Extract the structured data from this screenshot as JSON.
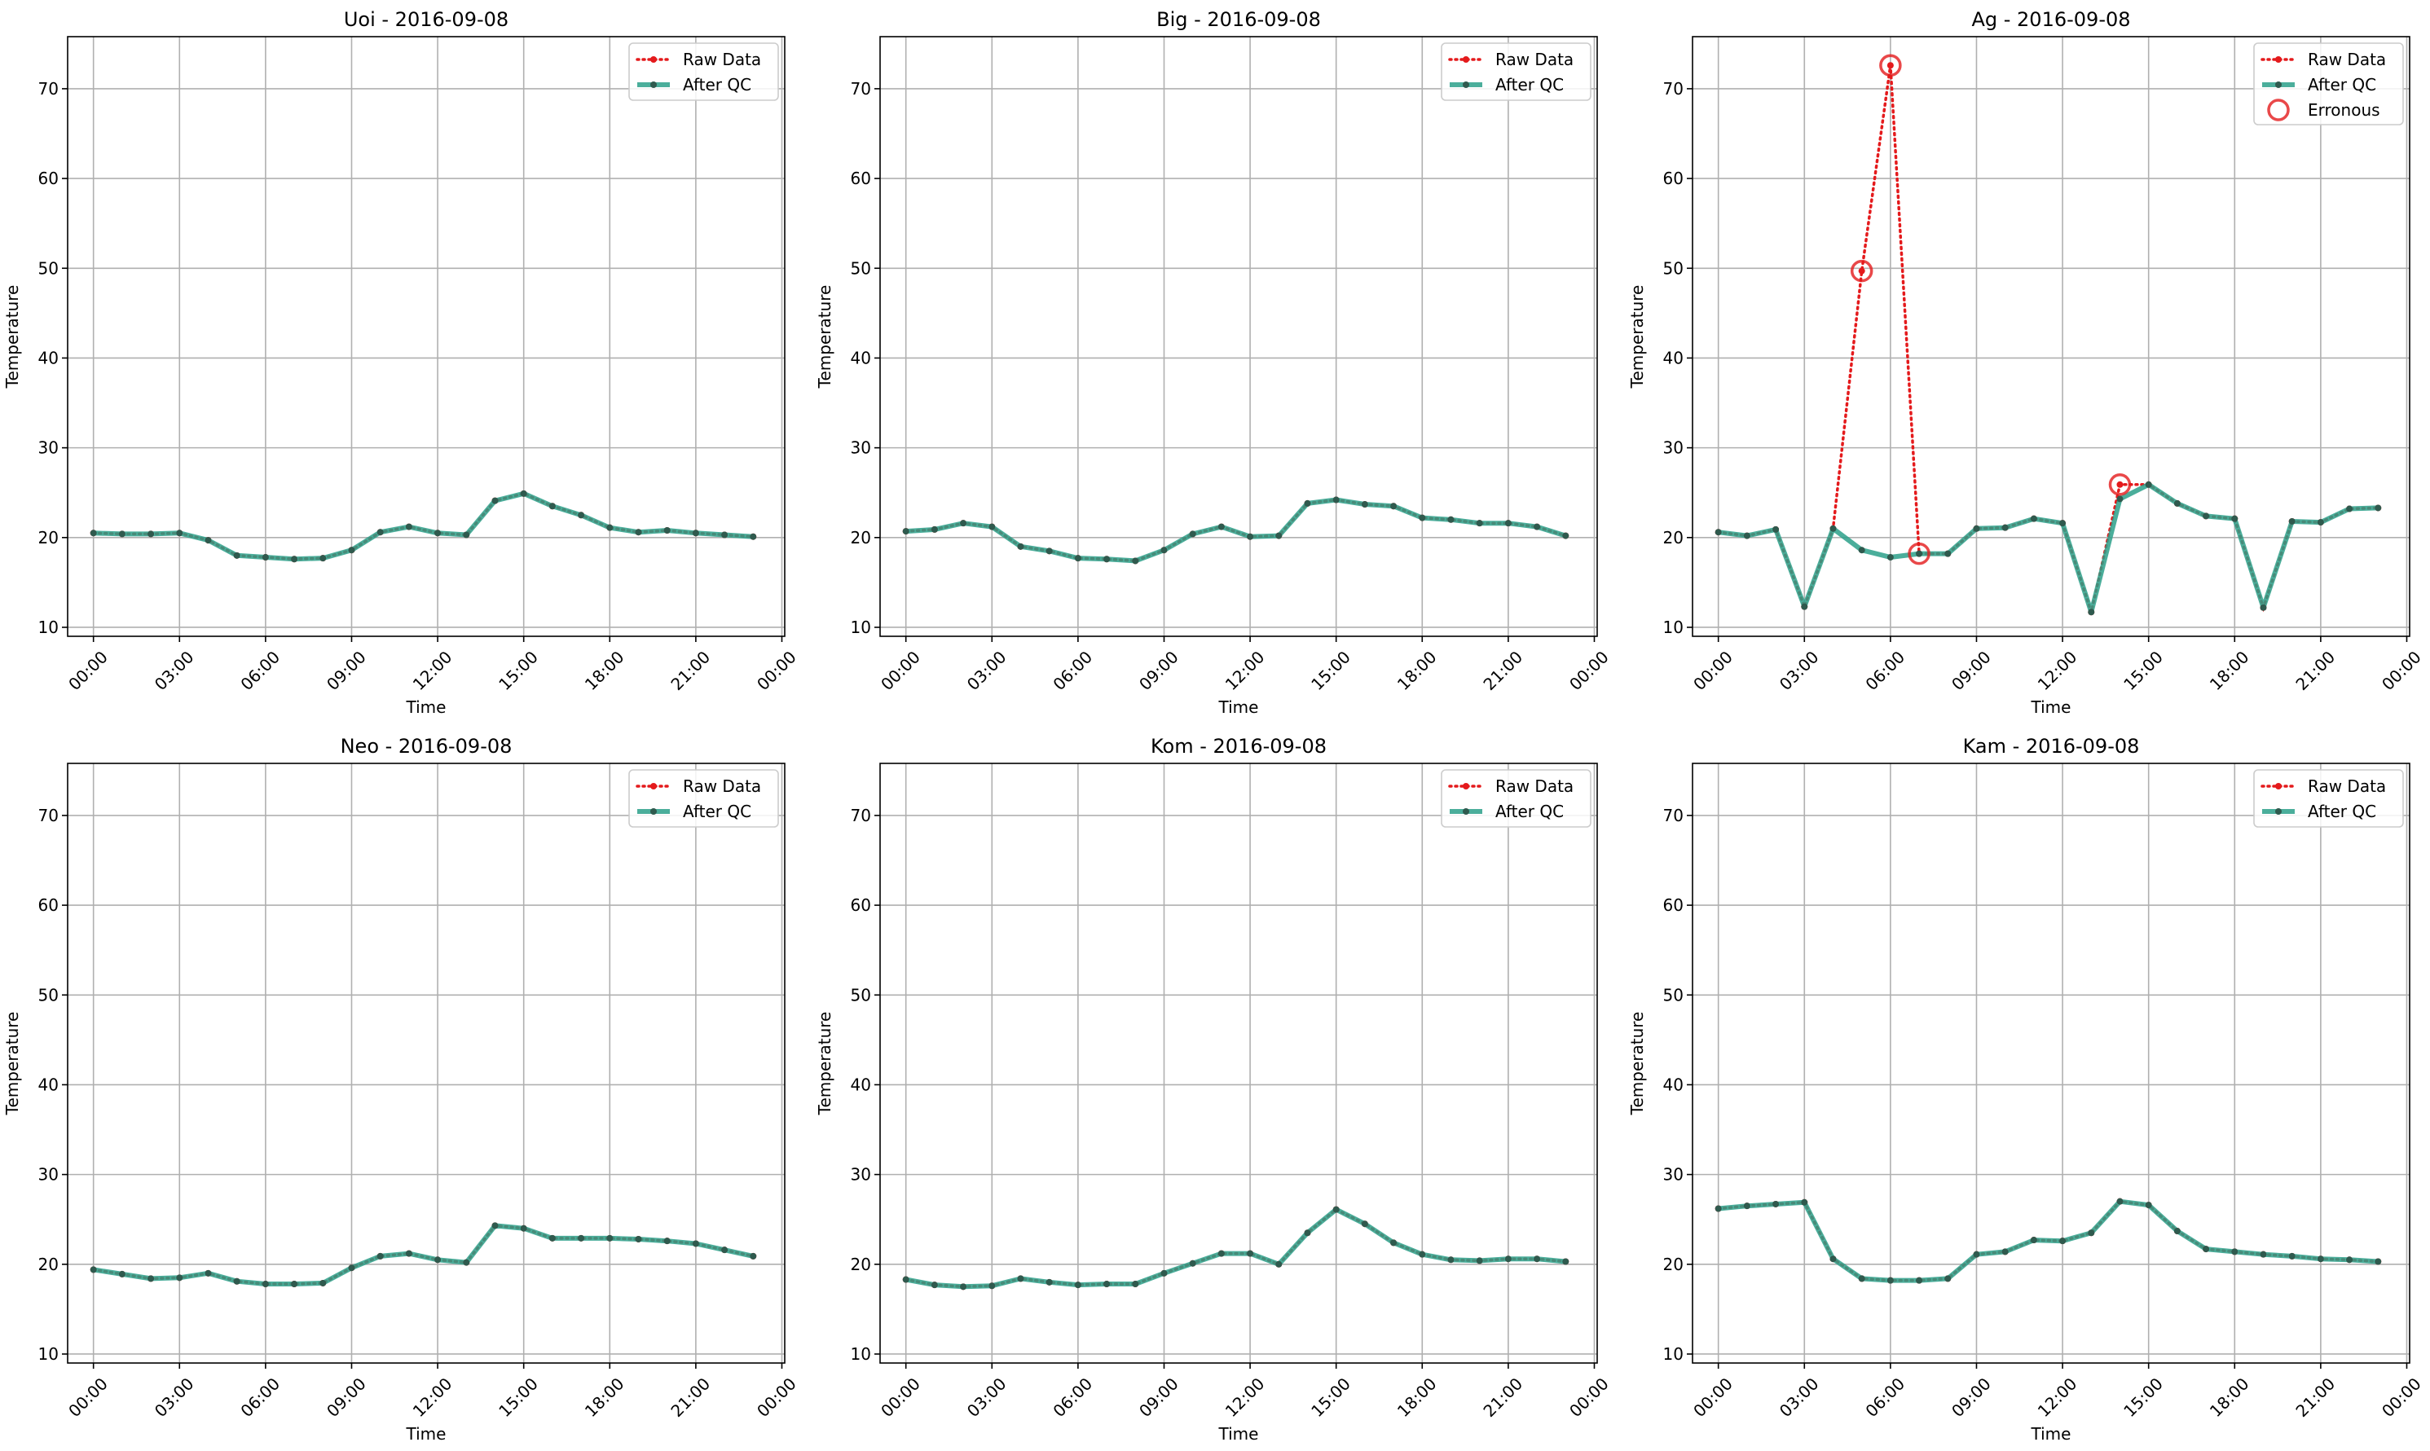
{
  "legend_labels": {
    "raw": "Raw Data",
    "qc": "After QC",
    "err": "Erronous"
  },
  "colors": {
    "raw": "#e41a1c",
    "qc": "#2ca089",
    "qc_marker": "#2f5a4e",
    "err": "#e41a1c",
    "grid": "#b0b0b0"
  },
  "chart_data": [
    {
      "type": "line",
      "title": "Uoi - 2016-09-08",
      "xlabel": "Time",
      "ylabel": "Temperature",
      "x_unit": "hour",
      "xlim": [
        -0.9,
        24.1
      ],
      "ylim": [
        9,
        75.8
      ],
      "yticks": [
        10,
        20,
        30,
        40,
        50,
        60,
        70
      ],
      "xticks": [
        0,
        3,
        6,
        9,
        12,
        15,
        18,
        21,
        24
      ],
      "xticklabels": [
        "00:00",
        "03:00",
        "06:00",
        "09:00",
        "12:00",
        "15:00",
        "18:00",
        "21:00",
        "00:00"
      ],
      "grid": true,
      "legend_position": "top-right",
      "x": [
        0,
        1,
        2,
        3,
        4,
        5,
        6,
        7,
        8,
        9,
        10,
        11,
        12,
        13,
        14,
        15,
        16,
        17,
        18,
        19,
        20,
        21,
        22,
        23
      ],
      "series": [
        {
          "name": "Raw Data",
          "values": [
            20.5,
            20.4,
            20.4,
            20.5,
            19.7,
            18.0,
            17.8,
            17.6,
            17.7,
            18.6,
            20.6,
            21.2,
            20.5,
            20.3,
            24.1,
            24.9,
            23.5,
            22.5,
            21.1,
            20.6,
            20.8,
            20.5,
            20.3,
            20.1
          ]
        },
        {
          "name": "After QC",
          "values": [
            20.5,
            20.4,
            20.4,
            20.5,
            19.7,
            18.0,
            17.8,
            17.6,
            17.7,
            18.6,
            20.6,
            21.2,
            20.5,
            20.3,
            24.1,
            24.9,
            23.5,
            22.5,
            21.1,
            20.6,
            20.8,
            20.5,
            20.3,
            20.1
          ]
        }
      ],
      "erroneous": []
    },
    {
      "type": "line",
      "title": "Big - 2016-09-08",
      "xlabel": "Time",
      "ylabel": "Temperature",
      "x_unit": "hour",
      "xlim": [
        -0.9,
        24.1
      ],
      "ylim": [
        9,
        75.8
      ],
      "yticks": [
        10,
        20,
        30,
        40,
        50,
        60,
        70
      ],
      "xticks": [
        0,
        3,
        6,
        9,
        12,
        15,
        18,
        21,
        24
      ],
      "xticklabels": [
        "00:00",
        "03:00",
        "06:00",
        "09:00",
        "12:00",
        "15:00",
        "18:00",
        "21:00",
        "00:00"
      ],
      "grid": true,
      "legend_position": "top-right",
      "x": [
        0,
        1,
        2,
        3,
        4,
        5,
        6,
        7,
        8,
        9,
        10,
        11,
        12,
        13,
        14,
        15,
        16,
        17,
        18,
        19,
        20,
        21,
        22,
        23
      ],
      "series": [
        {
          "name": "Raw Data",
          "values": [
            20.7,
            20.9,
            21.6,
            21.2,
            19.0,
            18.5,
            17.7,
            17.6,
            17.4,
            18.6,
            20.4,
            21.2,
            20.1,
            20.2,
            23.8,
            24.2,
            23.7,
            23.5,
            22.2,
            22.0,
            21.6,
            21.6,
            21.2,
            20.2
          ]
        },
        {
          "name": "After QC",
          "values": [
            20.7,
            20.9,
            21.6,
            21.2,
            19.0,
            18.5,
            17.7,
            17.6,
            17.4,
            18.6,
            20.4,
            21.2,
            20.1,
            20.2,
            23.8,
            24.2,
            23.7,
            23.5,
            22.2,
            22.0,
            21.6,
            21.6,
            21.2,
            20.2
          ]
        }
      ],
      "erroneous": []
    },
    {
      "type": "line",
      "title": "Ag - 2016-09-08",
      "xlabel": "Time",
      "ylabel": "Temperature",
      "x_unit": "hour",
      "xlim": [
        -0.9,
        24.1
      ],
      "ylim": [
        9,
        75.8
      ],
      "yticks": [
        10,
        20,
        30,
        40,
        50,
        60,
        70
      ],
      "xticks": [
        0,
        3,
        6,
        9,
        12,
        15,
        18,
        21,
        24
      ],
      "xticklabels": [
        "00:00",
        "03:00",
        "06:00",
        "09:00",
        "12:00",
        "15:00",
        "18:00",
        "21:00",
        "00:00"
      ],
      "grid": true,
      "legend_position": "top-right",
      "x": [
        0,
        1,
        2,
        3,
        4,
        5,
        6,
        7,
        8,
        9,
        10,
        11,
        12,
        13,
        14,
        15,
        16,
        17,
        18,
        19,
        20,
        21,
        22,
        23
      ],
      "series": [
        {
          "name": "Raw Data",
          "values": [
            20.6,
            20.2,
            20.9,
            12.3,
            21.0,
            49.7,
            72.6,
            18.2,
            18.2,
            21.0,
            21.1,
            22.1,
            21.6,
            11.7,
            25.9,
            25.9,
            23.8,
            22.4,
            22.1,
            12.2,
            21.8,
            21.7,
            23.2,
            23.3
          ]
        },
        {
          "name": "After QC",
          "values": [
            20.6,
            20.2,
            20.9,
            12.3,
            21.0,
            18.6,
            17.8,
            18.2,
            18.2,
            21.0,
            21.1,
            22.1,
            21.6,
            11.7,
            24.3,
            25.9,
            23.8,
            22.4,
            22.1,
            12.2,
            21.8,
            21.7,
            23.2,
            23.3
          ]
        },
        {
          "name": "Erronous",
          "x": [
            5,
            6,
            7,
            14
          ],
          "values": [
            49.7,
            72.6,
            18.2,
            25.9
          ]
        }
      ],
      "erroneous": [
        [
          5,
          49.7
        ],
        [
          6,
          72.6
        ],
        [
          7,
          18.2
        ],
        [
          14,
          25.9
        ]
      ]
    },
    {
      "type": "line",
      "title": "Neo - 2016-09-08",
      "xlabel": "Time",
      "ylabel": "Temperature",
      "x_unit": "hour",
      "xlim": [
        -0.9,
        24.1
      ],
      "ylim": [
        9,
        75.8
      ],
      "yticks": [
        10,
        20,
        30,
        40,
        50,
        60,
        70
      ],
      "xticks": [
        0,
        3,
        6,
        9,
        12,
        15,
        18,
        21,
        24
      ],
      "xticklabels": [
        "00:00",
        "03:00",
        "06:00",
        "09:00",
        "12:00",
        "15:00",
        "18:00",
        "21:00",
        "00:00"
      ],
      "grid": true,
      "legend_position": "top-right",
      "x": [
        0,
        1,
        2,
        3,
        4,
        5,
        6,
        7,
        8,
        9,
        10,
        11,
        12,
        13,
        14,
        15,
        16,
        17,
        18,
        19,
        20,
        21,
        22,
        23
      ],
      "series": [
        {
          "name": "Raw Data",
          "values": [
            19.4,
            18.9,
            18.4,
            18.5,
            19.0,
            18.1,
            17.8,
            17.8,
            17.9,
            19.6,
            20.9,
            21.2,
            20.5,
            20.2,
            24.3,
            24.0,
            22.9,
            22.9,
            22.9,
            22.8,
            22.6,
            22.3,
            21.6,
            20.9
          ]
        },
        {
          "name": "After QC",
          "values": [
            19.4,
            18.9,
            18.4,
            18.5,
            19.0,
            18.1,
            17.8,
            17.8,
            17.9,
            19.6,
            20.9,
            21.2,
            20.5,
            20.2,
            24.3,
            24.0,
            22.9,
            22.9,
            22.9,
            22.8,
            22.6,
            22.3,
            21.6,
            20.9
          ]
        }
      ],
      "erroneous": []
    },
    {
      "type": "line",
      "title": "Kom - 2016-09-08",
      "xlabel": "Time",
      "ylabel": "Temperature",
      "x_unit": "hour",
      "xlim": [
        -0.9,
        24.1
      ],
      "ylim": [
        9,
        75.8
      ],
      "yticks": [
        10,
        20,
        30,
        40,
        50,
        60,
        70
      ],
      "xticks": [
        0,
        3,
        6,
        9,
        12,
        15,
        18,
        21,
        24
      ],
      "xticklabels": [
        "00:00",
        "03:00",
        "06:00",
        "09:00",
        "12:00",
        "15:00",
        "18:00",
        "21:00",
        "00:00"
      ],
      "grid": true,
      "legend_position": "top-right",
      "x": [
        0,
        1,
        2,
        3,
        4,
        5,
        6,
        7,
        8,
        9,
        10,
        11,
        12,
        13,
        14,
        15,
        16,
        17,
        18,
        19,
        20,
        21,
        22,
        23
      ],
      "series": [
        {
          "name": "Raw Data",
          "values": [
            18.3,
            17.7,
            17.5,
            17.6,
            18.4,
            18.0,
            17.7,
            17.8,
            17.8,
            19.0,
            20.1,
            21.2,
            21.2,
            20.0,
            23.5,
            26.1,
            24.5,
            22.4,
            21.1,
            20.5,
            20.4,
            20.6,
            20.6,
            20.3
          ]
        },
        {
          "name": "After QC",
          "values": [
            18.3,
            17.7,
            17.5,
            17.6,
            18.4,
            18.0,
            17.7,
            17.8,
            17.8,
            19.0,
            20.1,
            21.2,
            21.2,
            20.0,
            23.5,
            26.1,
            24.5,
            22.4,
            21.1,
            20.5,
            20.4,
            20.6,
            20.6,
            20.3
          ]
        }
      ],
      "erroneous": []
    },
    {
      "type": "line",
      "title": "Kam - 2016-09-08",
      "xlabel": "Time",
      "ylabel": "Temperature",
      "x_unit": "hour",
      "xlim": [
        -0.9,
        24.1
      ],
      "ylim": [
        9,
        75.8
      ],
      "yticks": [
        10,
        20,
        30,
        40,
        50,
        60,
        70
      ],
      "xticks": [
        0,
        3,
        6,
        9,
        12,
        15,
        18,
        21,
        24
      ],
      "xticklabels": [
        "00:00",
        "03:00",
        "06:00",
        "09:00",
        "12:00",
        "15:00",
        "18:00",
        "21:00",
        "00:00"
      ],
      "grid": true,
      "legend_position": "top-right",
      "x": [
        0,
        1,
        2,
        3,
        4,
        5,
        6,
        7,
        8,
        9,
        10,
        11,
        12,
        13,
        14,
        15,
        16,
        17,
        18,
        19,
        20,
        21,
        22,
        23
      ],
      "series": [
        {
          "name": "Raw Data",
          "values": [
            26.2,
            26.5,
            26.7,
            26.9,
            20.6,
            18.4,
            18.2,
            18.2,
            18.4,
            21.1,
            21.4,
            22.7,
            22.6,
            23.5,
            27.0,
            26.6,
            23.7,
            21.7,
            21.4,
            21.1,
            20.9,
            20.6,
            20.5,
            20.3
          ]
        },
        {
          "name": "After QC",
          "values": [
            26.2,
            26.5,
            26.7,
            26.9,
            20.6,
            18.4,
            18.2,
            18.2,
            18.4,
            21.1,
            21.4,
            22.7,
            22.6,
            23.5,
            27.0,
            26.6,
            23.7,
            21.7,
            21.4,
            21.1,
            20.9,
            20.6,
            20.5,
            20.3
          ]
        }
      ],
      "erroneous": []
    }
  ]
}
